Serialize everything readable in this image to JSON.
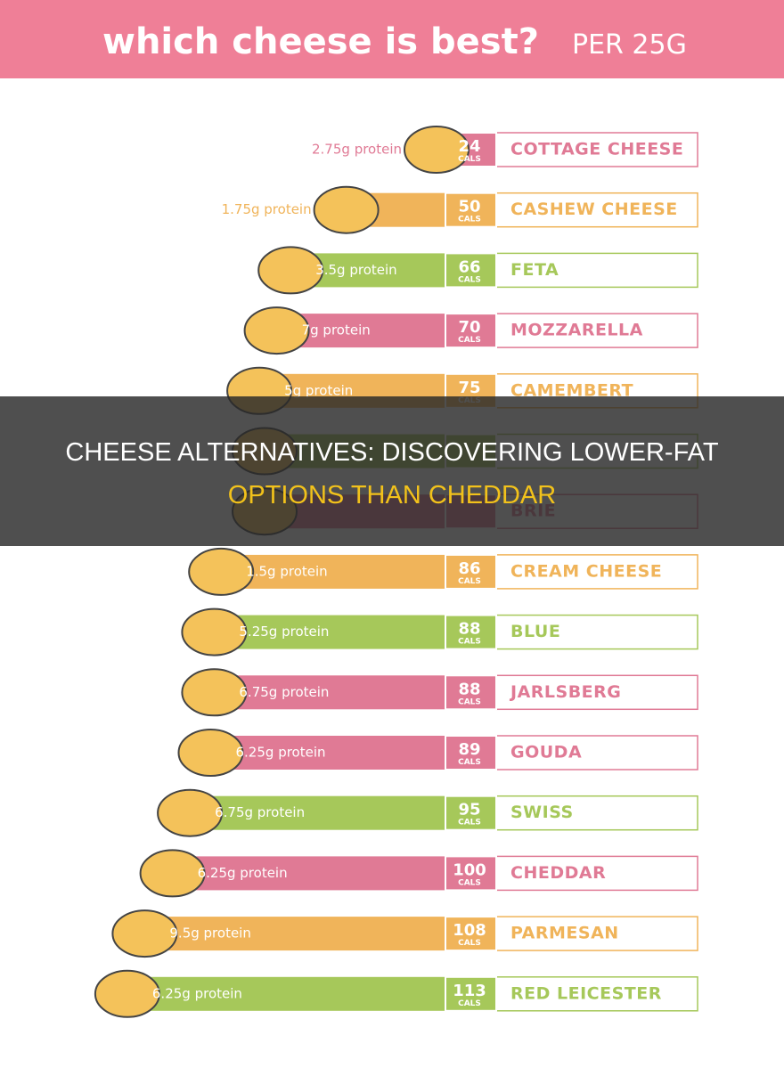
{
  "header": {
    "title": "which cheese is best?",
    "subtitle": "PER 25G"
  },
  "cals_label": "CALS",
  "rows": [
    {
      "name": "COTTAGE CHEESE",
      "cals": 24,
      "protein": "2.75g protein",
      "color": "#e07a95"
    },
    {
      "name": "CASHEW CHEESE",
      "cals": 50,
      "protein": "1.75g protein",
      "color": "#f0b45a"
    },
    {
      "name": "FETA",
      "cals": 66,
      "protein": "3.5g protein",
      "color": "#a6c85a"
    },
    {
      "name": "MOZZARELLA",
      "cals": 70,
      "protein": "7g protein",
      "color": "#e07a95"
    },
    {
      "name": "CAMEMBERT",
      "cals": 75,
      "protein": "5g protein",
      "color": "#f0b45a"
    },
    {
      "color": "#a6c85a"
    },
    {
      "name": "BRIE",
      "color": "#e07a95"
    },
    {
      "name": "CREAM CHEESE",
      "cals": 86,
      "protein": "1.5g protein",
      "color": "#f0b45a"
    },
    {
      "name": "BLUE",
      "cals": 88,
      "protein": "5.25g protein",
      "color": "#a6c85a"
    },
    {
      "name": "JARLSBERG",
      "cals": 88,
      "protein": "6.75g protein",
      "color": "#e07a95"
    },
    {
      "name": "GOUDA",
      "cals": 89,
      "protein": "6.25g protein",
      "color": "#e07a95"
    },
    {
      "name": "SWISS",
      "cals": 95,
      "protein": "6.75g protein",
      "color": "#a6c85a"
    },
    {
      "name": "CHEDDAR",
      "cals": 100,
      "protein": "6.25g protein",
      "color": "#e07a95"
    },
    {
      "name": "PARMESAN",
      "cals": 108,
      "protein": "9.5g protein",
      "color": "#f0b45a"
    },
    {
      "name": "RED LEICESTER",
      "cals": 113,
      "protein": "6.25g protein",
      "color": "#a6c85a"
    }
  ],
  "overlay": {
    "line1": "CHEESE ALTERNATIVES: DISCOVERING LOWER-FAT",
    "line2": "OPTIONS THAN CHEDDAR"
  }
}
